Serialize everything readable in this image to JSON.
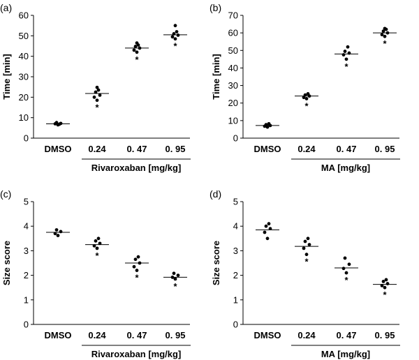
{
  "chart_data": [
    {
      "panel_label": "(a)",
      "type": "scatter",
      "ylabel": "Time [min]",
      "xgroup_label": "Rivaroxaban [mg/kg]",
      "categories": [
        "DMSO",
        "0.24",
        "0. 47",
        "0. 95"
      ],
      "ylim": [
        0,
        60
      ],
      "yticks": [
        0,
        10,
        20,
        30,
        40,
        50,
        60
      ],
      "means": [
        7,
        21.8,
        44,
        50.5
      ],
      "points": [
        [
          6.5,
          7,
          7.2,
          7.6,
          6.8
        ],
        [
          18.5,
          20,
          21,
          22.5,
          23.5,
          24.8
        ],
        [
          42,
          43,
          44,
          44.8,
          45.5,
          46.5
        ],
        [
          48.5,
          49.5,
          50.3,
          51,
          52,
          55
        ]
      ],
      "significance": [
        "",
        "*",
        "*",
        "*"
      ],
      "grid": false
    },
    {
      "panel_label": "(b)",
      "type": "scatter",
      "ylabel": "Time [min]",
      "xgroup_label": "MA [mg/kg]",
      "categories": [
        "DMSO",
        "0.24",
        "0. 47",
        "0. 95"
      ],
      "ylim": [
        0,
        70
      ],
      "yticks": [
        0,
        10,
        20,
        30,
        40,
        50,
        60,
        70
      ],
      "means": [
        7.2,
        24,
        48,
        60
      ],
      "points": [
        [
          6.3,
          6.8,
          7.2,
          7.7,
          8.2
        ],
        [
          22.5,
          23.2,
          24,
          24.6,
          25.3
        ],
        [
          45,
          47.5,
          48.5,
          49.5,
          52
        ],
        [
          58,
          59,
          60,
          61,
          62,
          62.5
        ]
      ],
      "significance": [
        "",
        "*",
        "*",
        "*"
      ],
      "grid": false
    },
    {
      "panel_label": "(c)",
      "type": "scatter",
      "ylabel": "Size score",
      "xgroup_label": "Rivaroxaban [mg/kg]",
      "categories": [
        "DMSO",
        "0.24",
        "0. 47",
        "0. 95"
      ],
      "ylim": [
        0,
        5
      ],
      "yticks": [
        0,
        1,
        2,
        3,
        4,
        5
      ],
      "means": [
        3.75,
        3.25,
        2.5,
        1.92
      ],
      "points": [
        [
          3.62,
          3.7,
          3.78,
          3.85
        ],
        [
          3.1,
          3.2,
          3.3,
          3.4,
          3.5
        ],
        [
          2.2,
          2.35,
          2.5,
          2.65,
          2.75
        ],
        [
          1.85,
          1.92,
          2.0,
          2.08
        ]
      ],
      "significance": [
        "",
        "*",
        "*",
        "*"
      ],
      "grid": false
    },
    {
      "panel_label": "(d)",
      "type": "scatter",
      "ylabel": "Size score",
      "xgroup_label": "MA [mg/kg]",
      "categories": [
        "DMSO",
        "0.24",
        "0. 47",
        "0. 95"
      ],
      "ylim": [
        0,
        5
      ],
      "yticks": [
        0,
        1,
        2,
        3,
        4,
        5
      ],
      "means": [
        3.85,
        3.18,
        2.3,
        1.63
      ],
      "points": [
        [
          3.5,
          3.75,
          3.9,
          4.0,
          4.1
        ],
        [
          2.85,
          3.1,
          3.25,
          3.38,
          3.5
        ],
        [
          2.1,
          2.28,
          2.45,
          2.7
        ],
        [
          1.5,
          1.58,
          1.66,
          1.75,
          1.82
        ]
      ],
      "significance": [
        "",
        "*",
        "*",
        "*"
      ],
      "grid": false
    }
  ]
}
